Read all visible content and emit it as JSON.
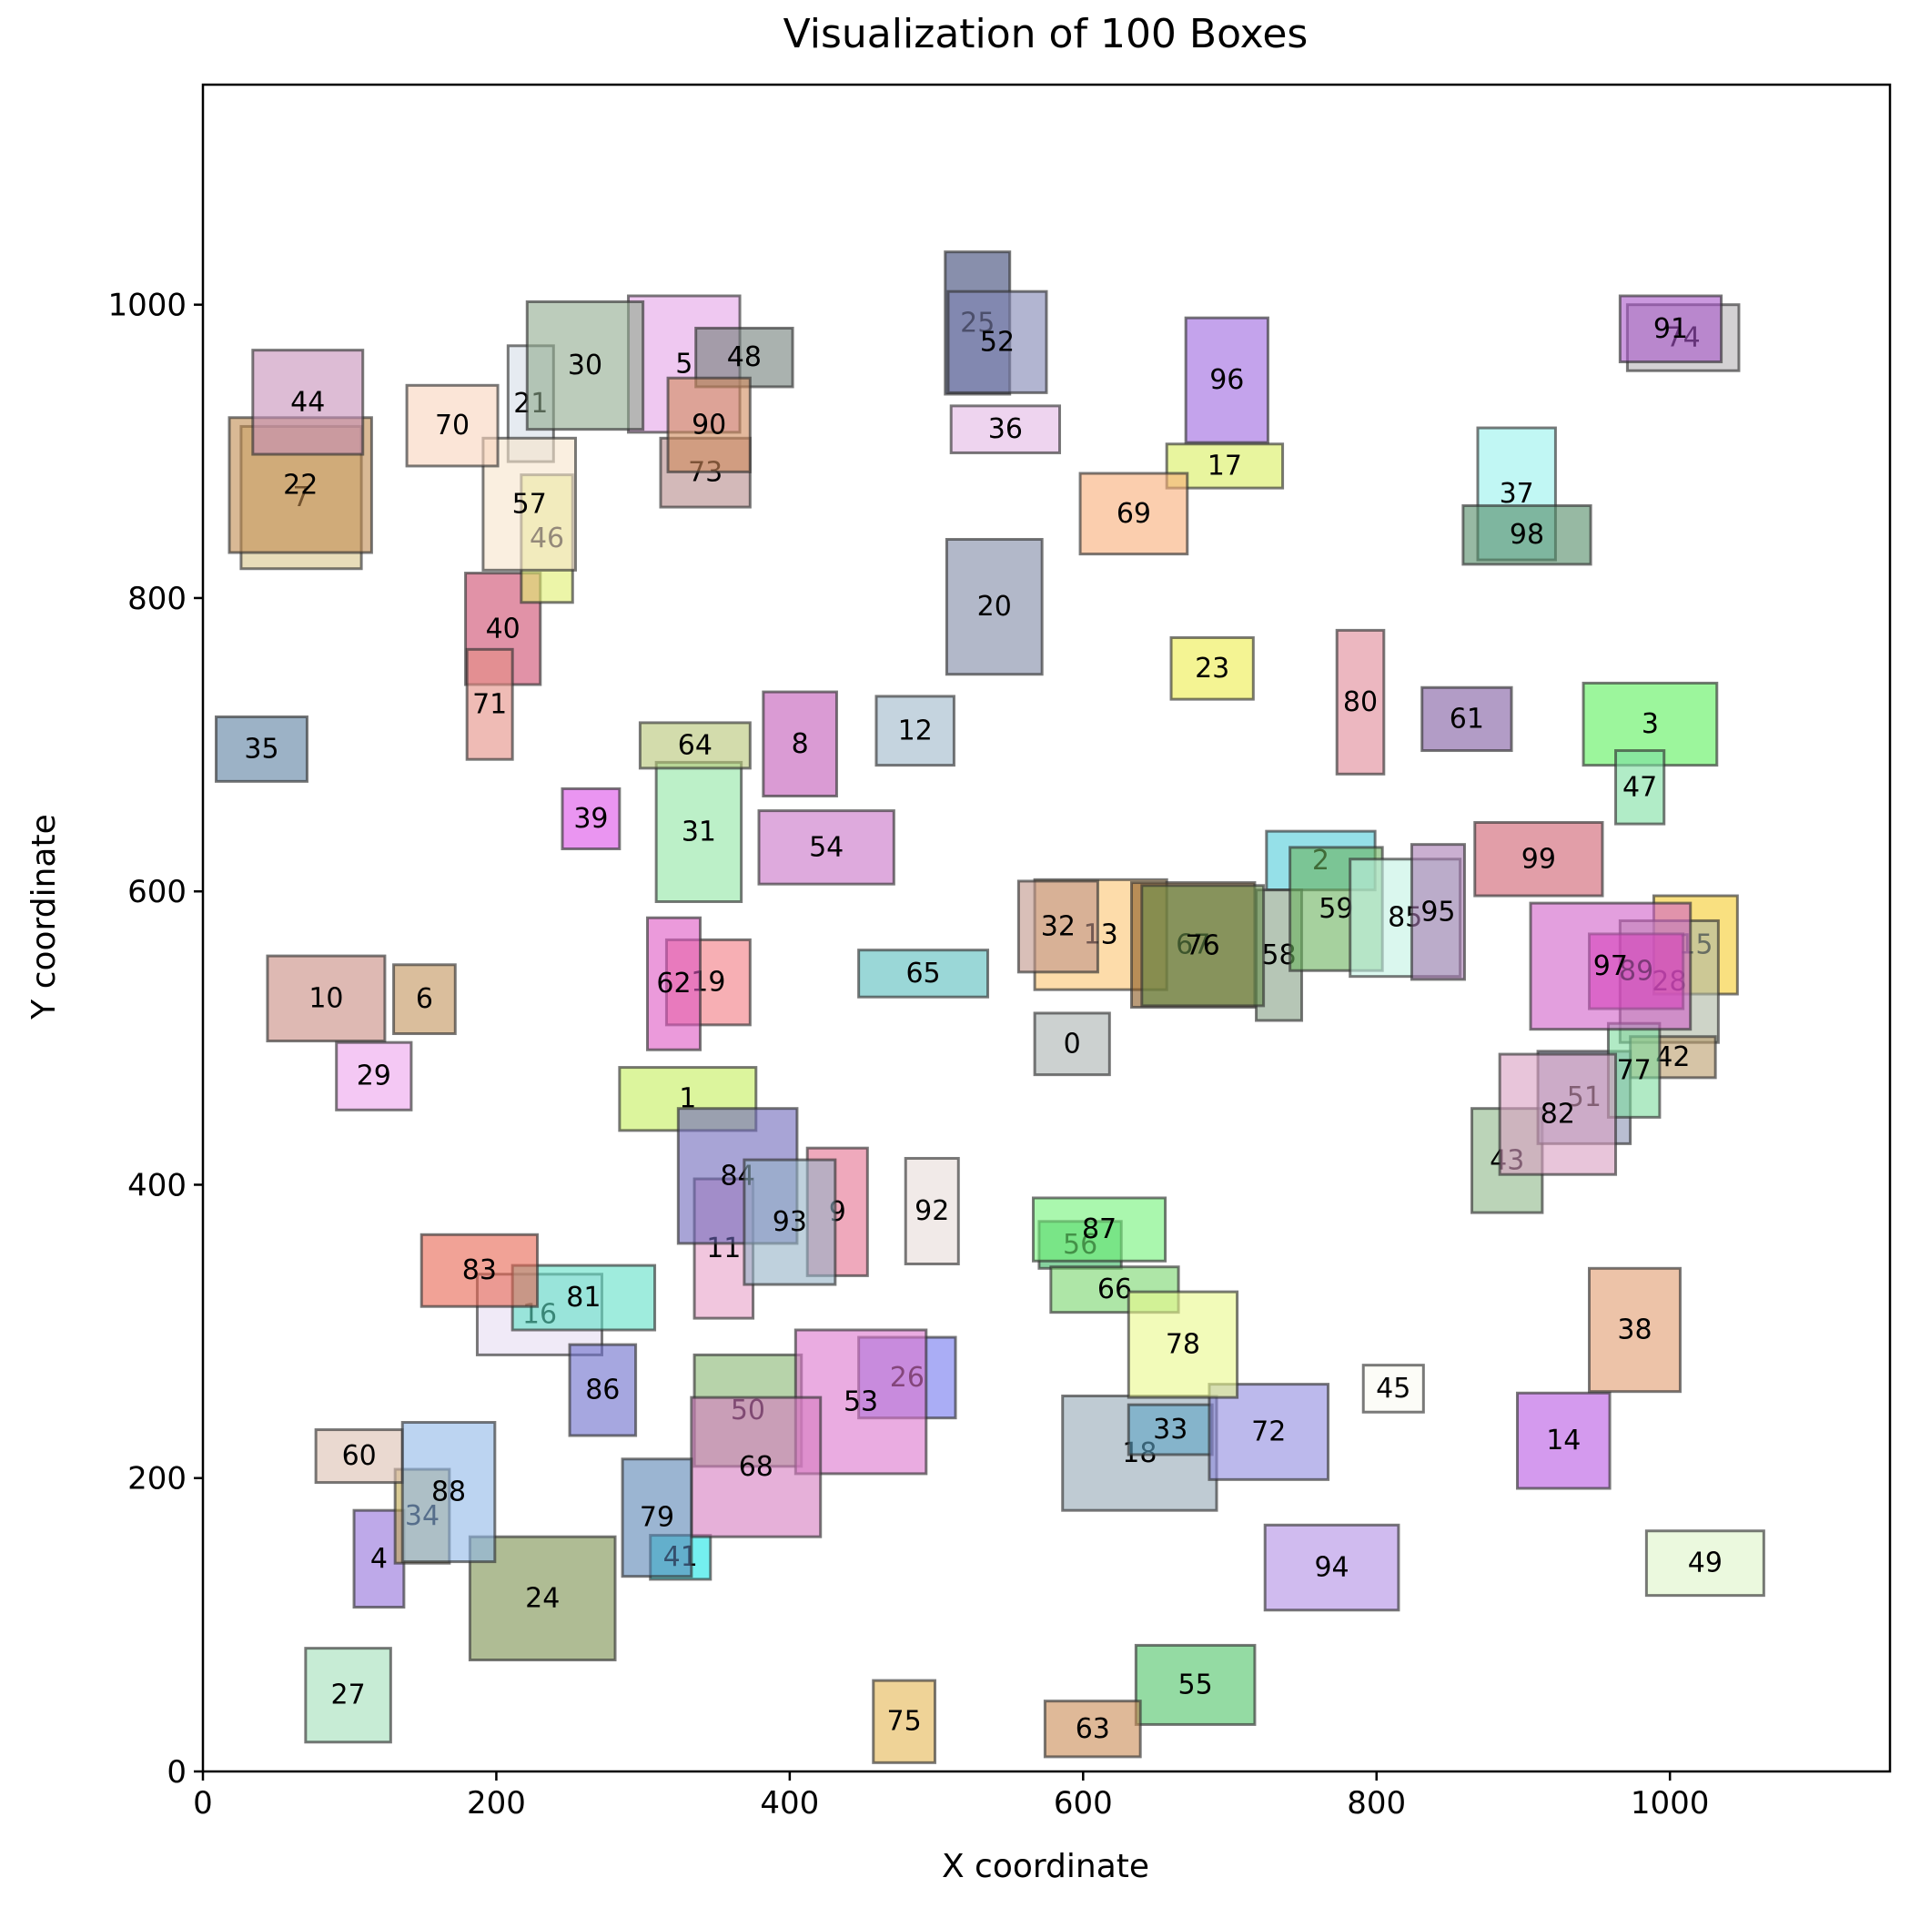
{
  "chart_data": {
    "type": "box-layout",
    "title": "Visualization of 100 Boxes",
    "xlabel": "X coordinate",
    "ylabel": "Y coordinate",
    "xlim": [
      0,
      1150
    ],
    "ylim": [
      0,
      1150
    ],
    "xticks": [
      0,
      200,
      400,
      600,
      800,
      1000
    ],
    "yticks": [
      0,
      200,
      400,
      600,
      800,
      1000
    ],
    "grid": false,
    "legend": "none",
    "boxes": [
      {
        "id": "0",
        "x0": 567,
        "y0": 475,
        "x1": 618,
        "y1": 517,
        "color": "#aab3b0"
      },
      {
        "id": "1",
        "x0": 284,
        "y0": 437,
        "x1": 377,
        "y1": 480,
        "color": "#c4ee5c"
      },
      {
        "id": "2",
        "x0": 725,
        "y0": 601,
        "x1": 799,
        "y1": 641,
        "color": "#4ecbd9"
      },
      {
        "id": "3",
        "x0": 941,
        "y0": 686,
        "x1": 1032,
        "y1": 742,
        "color": "#5af05a"
      },
      {
        "id": "4",
        "x0": 103,
        "y0": 112,
        "x1": 137,
        "y1": 178,
        "color": "#9370db"
      },
      {
        "id": "5",
        "x0": 290,
        "y0": 913,
        "x1": 366,
        "y1": 1006,
        "color": "#e5a3e8"
      },
      {
        "id": "6",
        "x0": 130,
        "y0": 503,
        "x1": 172,
        "y1": 550,
        "color": "#c2925a"
      },
      {
        "id": "7",
        "x0": 26,
        "y0": 820,
        "x1": 108,
        "y1": 917,
        "color": "#d8c68a"
      },
      {
        "id": "8",
        "x0": 382,
        "y0": 665,
        "x1": 432,
        "y1": 736,
        "color": "#c259b8"
      },
      {
        "id": "9",
        "x0": 412,
        "y0": 338,
        "x1": 453,
        "y1": 425,
        "color": "#e57090"
      },
      {
        "id": "10",
        "x0": 44,
        "y0": 498,
        "x1": 124,
        "y1": 556,
        "color": "#c88b80"
      },
      {
        "id": "11",
        "x0": 335,
        "y0": 309,
        "x1": 375,
        "y1": 404,
        "color": "#e8a0c8"
      },
      {
        "id": "12",
        "x0": 459,
        "y0": 686,
        "x1": 512,
        "y1": 733,
        "color": "#9fb7c9"
      },
      {
        "id": "13",
        "x0": 567,
        "y0": 533,
        "x1": 657,
        "y1": 608,
        "color": "#fcc471"
      },
      {
        "id": "14",
        "x0": 896,
        "y0": 193,
        "x1": 959,
        "y1": 258,
        "color": "#b756e3"
      },
      {
        "id": "15",
        "x0": 989,
        "y0": 530,
        "x1": 1046,
        "y1": 597,
        "color": "#f5cc2b"
      },
      {
        "id": "16",
        "x0": 187,
        "y0": 284,
        "x1": 272,
        "y1": 339,
        "color": "#e6dcf2"
      },
      {
        "id": "17",
        "x0": 657,
        "y0": 875,
        "x1": 736,
        "y1": 905,
        "color": "#d8ef5d"
      },
      {
        "id": "18",
        "x0": 586,
        "y0": 178,
        "x1": 691,
        "y1": 256,
        "color": "#95a9b6"
      },
      {
        "id": "19",
        "x0": 316,
        "y0": 509,
        "x1": 373,
        "y1": 567,
        "color": "#f27a82"
      },
      {
        "id": "20",
        "x0": 507,
        "y0": 748,
        "x1": 572,
        "y1": 840,
        "color": "#7f89a5"
      },
      {
        "id": "21",
        "x0": 208,
        "y0": 893,
        "x1": 239,
        "y1": 972,
        "color": "#d6dde8"
      },
      {
        "id": "22",
        "x0": 18,
        "y0": 831,
        "x1": 115,
        "y1": 923,
        "color": "#c08a4e"
      },
      {
        "id": "23",
        "x0": 660,
        "y0": 731,
        "x1": 716,
        "y1": 773,
        "color": "#eded4b"
      },
      {
        "id": "24",
        "x0": 182,
        "y0": 76,
        "x1": 281,
        "y1": 160,
        "color": "#79904c"
      },
      {
        "id": "25",
        "x0": 506,
        "y0": 939,
        "x1": 550,
        "y1": 1036,
        "color": "#394575"
      },
      {
        "id": "26",
        "x0": 447,
        "y0": 241,
        "x1": 513,
        "y1": 296,
        "color": "#7276ee"
      },
      {
        "id": "27",
        "x0": 70,
        "y0": 20,
        "x1": 128,
        "y1": 84,
        "color": "#a2dfb9"
      },
      {
        "id": "28",
        "x0": 966,
        "y0": 497,
        "x1": 1033,
        "y1": 580,
        "color": "#aeb8a4"
      },
      {
        "id": "29",
        "x0": 91,
        "y0": 451,
        "x1": 142,
        "y1": 497,
        "color": "#eda4ec"
      },
      {
        "id": "30",
        "x0": 221,
        "y0": 915,
        "x1": 300,
        "y1": 1002,
        "color": "#8faa8d"
      },
      {
        "id": "31",
        "x0": 309,
        "y0": 593,
        "x1": 367,
        "y1": 688,
        "color": "#8fe6a3"
      },
      {
        "id": "32",
        "x0": 556,
        "y0": 545,
        "x1": 610,
        "y1": 607,
        "color": "#c09488"
      },
      {
        "id": "33",
        "x0": 631,
        "y0": 216,
        "x1": 688,
        "y1": 250,
        "color": "#5fa5c6"
      },
      {
        "id": "34",
        "x0": 131,
        "y0": 142,
        "x1": 168,
        "y1": 206,
        "color": "#c0a84c"
      },
      {
        "id": "35",
        "x0": 9,
        "y0": 675,
        "x1": 71,
        "y1": 719,
        "color": "#5a7fa0"
      },
      {
        "id": "36",
        "x0": 510,
        "y0": 899,
        "x1": 584,
        "y1": 931,
        "color": "#e3b7e5"
      },
      {
        "id": "37",
        "x0": 869,
        "y0": 826,
        "x1": 922,
        "y1": 916,
        "color": "#98f2ec"
      },
      {
        "id": "38",
        "x0": 945,
        "y0": 259,
        "x1": 1007,
        "y1": 343,
        "color": "#e19b6e"
      },
      {
        "id": "39",
        "x0": 245,
        "y0": 629,
        "x1": 284,
        "y1": 670,
        "color": "#dc4ee8"
      },
      {
        "id": "40",
        "x0": 179,
        "y0": 741,
        "x1": 230,
        "y1": 817,
        "color": "#cd4a6d"
      },
      {
        "id": "41",
        "x0": 305,
        "y0": 131,
        "x1": 346,
        "y1": 161,
        "color": "#18e4e4"
      },
      {
        "id": "42",
        "x0": 973,
        "y0": 473,
        "x1": 1031,
        "y1": 501,
        "color": "#bb9d6a"
      },
      {
        "id": "43",
        "x0": 865,
        "y0": 381,
        "x1": 913,
        "y1": 452,
        "color": "#8eb889"
      },
      {
        "id": "44",
        "x0": 34,
        "y0": 898,
        "x1": 109,
        "y1": 969,
        "color": "#c68fb9"
      },
      {
        "id": "45",
        "x0": 791,
        "y0": 245,
        "x1": 832,
        "y1": 277,
        "color": "#fafaf1"
      },
      {
        "id": "46",
        "x0": 217,
        "y0": 797,
        "x1": 252,
        "y1": 884,
        "color": "#dfee6e"
      },
      {
        "id": "47",
        "x0": 963,
        "y0": 646,
        "x1": 996,
        "y1": 696,
        "color": "#7ddfa1"
      },
      {
        "id": "48",
        "x0": 336,
        "y0": 944,
        "x1": 402,
        "y1": 984,
        "color": "#727f7a"
      },
      {
        "id": "49",
        "x0": 984,
        "y0": 120,
        "x1": 1064,
        "y1": 164,
        "color": "#ddf5c8"
      },
      {
        "id": "50",
        "x0": 335,
        "y0": 208,
        "x1": 408,
        "y1": 284,
        "color": "#87b672"
      },
      {
        "id": "51",
        "x0": 910,
        "y0": 428,
        "x1": 973,
        "y1": 491,
        "color": "#8a93b3"
      },
      {
        "id": "52",
        "x0": 508,
        "y0": 940,
        "x1": 575,
        "y1": 1009,
        "color": "#7f83b2"
      },
      {
        "id": "53",
        "x0": 404,
        "y0": 203,
        "x1": 493,
        "y1": 301,
        "color": "#dc75cd"
      },
      {
        "id": "54",
        "x0": 379,
        "y0": 605,
        "x1": 471,
        "y1": 655,
        "color": "#c872c7"
      },
      {
        "id": "55",
        "x0": 636,
        "y0": 32,
        "x1": 717,
        "y1": 86,
        "color": "#4cc366"
      },
      {
        "id": "56",
        "x0": 570,
        "y0": 343,
        "x1": 626,
        "y1": 375,
        "color": "#36b35d"
      },
      {
        "id": "57",
        "x0": 191,
        "y0": 819,
        "x1": 254,
        "y1": 909,
        "color": "#f7e4cb"
      },
      {
        "id": "58",
        "x0": 718,
        "y0": 512,
        "x1": 749,
        "y1": 601,
        "color": "#86a085"
      },
      {
        "id": "59",
        "x0": 741,
        "y0": 546,
        "x1": 804,
        "y1": 630,
        "color": "#6ab35d"
      },
      {
        "id": "60",
        "x0": 77,
        "y0": 197,
        "x1": 136,
        "y1": 233,
        "color": "#dcc0b0"
      },
      {
        "id": "61",
        "x0": 831,
        "y0": 696,
        "x1": 892,
        "y1": 739,
        "color": "#7f5aa0"
      },
      {
        "id": "62",
        "x0": 303,
        "y0": 492,
        "x1": 339,
        "y1": 582,
        "color": "#de56c3"
      },
      {
        "id": "63",
        "x0": 574,
        "y0": 10,
        "x1": 639,
        "y1": 48,
        "color": "#c98a54"
      },
      {
        "id": "64",
        "x0": 298,
        "y0": 684,
        "x1": 373,
        "y1": 715,
        "color": "#b6c474"
      },
      {
        "id": "65",
        "x0": 447,
        "y0": 528,
        "x1": 535,
        "y1": 560,
        "color": "#57bdbd"
      },
      {
        "id": "66",
        "x0": 578,
        "y0": 313,
        "x1": 665,
        "y1": 344,
        "color": "#78d66c"
      },
      {
        "id": "67",
        "x0": 633,
        "y0": 521,
        "x1": 717,
        "y1": 606,
        "color": "#8a5820"
      },
      {
        "id": "68",
        "x0": 333,
        "y0": 160,
        "x1": 421,
        "y1": 255,
        "color": "#d67bc0"
      },
      {
        "id": "69",
        "x0": 598,
        "y0": 830,
        "x1": 671,
        "y1": 885,
        "color": "#f8ad78"
      },
      {
        "id": "70",
        "x0": 139,
        "y0": 890,
        "x1": 201,
        "y1": 945,
        "color": "#f8d4bd"
      },
      {
        "id": "71",
        "x0": 180,
        "y0": 690,
        "x1": 211,
        "y1": 765,
        "color": "#e58e83"
      },
      {
        "id": "72",
        "x0": 686,
        "y0": 199,
        "x1": 767,
        "y1": 264,
        "color": "#8f8be0"
      },
      {
        "id": "73",
        "x0": 312,
        "y0": 862,
        "x1": 373,
        "y1": 909,
        "color": "#b58b8b"
      },
      {
        "id": "74",
        "x0": 971,
        "y0": 955,
        "x1": 1047,
        "y1": 1000,
        "color": "#b6b3b6"
      },
      {
        "id": "75",
        "x0": 457,
        "y0": 6,
        "x1": 499,
        "y1": 62,
        "color": "#e4b652"
      },
      {
        "id": "76",
        "x0": 640,
        "y0": 522,
        "x1": 723,
        "y1": 604,
        "color": "#668e4a"
      },
      {
        "id": "77",
        "x0": 958,
        "y0": 446,
        "x1": 993,
        "y1": 510,
        "color": "#7ddc9e"
      },
      {
        "id": "78",
        "x0": 631,
        "y0": 255,
        "x1": 705,
        "y1": 327,
        "color": "#eaf98a"
      },
      {
        "id": "79",
        "x0": 286,
        "y0": 133,
        "x1": 333,
        "y1": 213,
        "color": "#5884b4"
      },
      {
        "id": "80",
        "x0": 773,
        "y0": 680,
        "x1": 805,
        "y1": 778,
        "color": "#e08796"
      },
      {
        "id": "81",
        "x0": 211,
        "y0": 301,
        "x1": 308,
        "y1": 345,
        "color": "#5fe0c7"
      },
      {
        "id": "82",
        "x0": 884,
        "y0": 407,
        "x1": 963,
        "y1": 489,
        "color": "#d89fc1"
      },
      {
        "id": "83",
        "x0": 149,
        "y0": 317,
        "x1": 228,
        "y1": 366,
        "color": "#e86450"
      },
      {
        "id": "84",
        "x0": 324,
        "y0": 360,
        "x1": 405,
        "y1": 452,
        "color": "#6e67ba"
      },
      {
        "id": "85",
        "x0": 782,
        "y0": 542,
        "x1": 857,
        "y1": 622,
        "color": "#c1f2e3"
      },
      {
        "id": "86",
        "x0": 250,
        "y0": 229,
        "x1": 295,
        "y1": 291,
        "color": "#6b6ccc"
      },
      {
        "id": "87",
        "x0": 566,
        "y0": 348,
        "x1": 656,
        "y1": 391,
        "color": "#72f278"
      },
      {
        "id": "88",
        "x0": 136,
        "y0": 143,
        "x1": 199,
        "y1": 238,
        "color": "#8fb7e8"
      },
      {
        "id": "89",
        "x0": 945,
        "y0": 520,
        "x1": 1009,
        "y1": 571,
        "color": "#e018a8"
      },
      {
        "id": "90",
        "x0": 317,
        "y0": 886,
        "x1": 373,
        "y1": 950,
        "color": "#d18b5c"
      },
      {
        "id": "91",
        "x0": 966,
        "y0": 961,
        "x1": 1035,
        "y1": 1006,
        "color": "#a855c9"
      },
      {
        "id": "92",
        "x0": 479,
        "y0": 346,
        "x1": 515,
        "y1": 418,
        "color": "#e8dcd9"
      },
      {
        "id": "93",
        "x0": 369,
        "y0": 332,
        "x1": 431,
        "y1": 417,
        "color": "#94b3c6"
      },
      {
        "id": "94",
        "x0": 724,
        "y0": 110,
        "x1": 815,
        "y1": 168,
        "color": "#b18ee4"
      },
      {
        "id": "95",
        "x0": 824,
        "y0": 540,
        "x1": 860,
        "y1": 632,
        "color": "#a779b3"
      },
      {
        "id": "96",
        "x0": 670,
        "y0": 906,
        "x1": 726,
        "y1": 991,
        "color": "#9c66e0"
      },
      {
        "id": "97",
        "x0": 905,
        "y0": 506,
        "x1": 1014,
        "y1": 592,
        "color": "#d15fc8"
      },
      {
        "id": "98",
        "x0": 859,
        "y0": 823,
        "x1": 946,
        "y1": 863,
        "color": "#528a66"
      },
      {
        "id": "99",
        "x0": 867,
        "y0": 597,
        "x1": 954,
        "y1": 647,
        "color": "#ce5d6e"
      }
    ]
  }
}
